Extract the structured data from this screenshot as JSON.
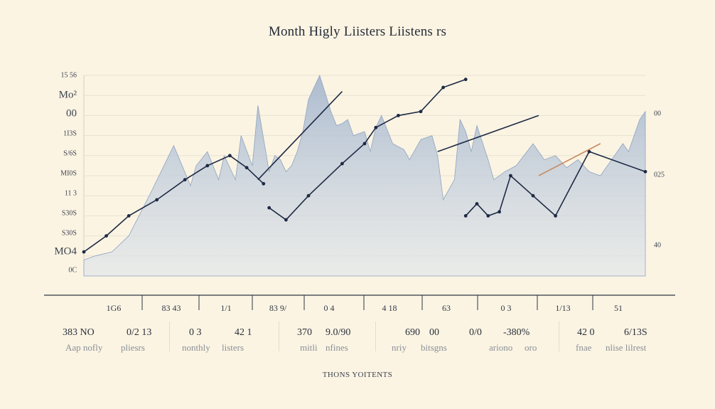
{
  "chart_data": {
    "type": "area",
    "title": "Month Higly Liisters Liistens rs",
    "y_ticks_left": [
      "15 56",
      "Mo²",
      "00",
      "1I3S",
      "S/6S",
      "MI0S",
      "11 3",
      "S30S",
      "S30S",
      "MO4",
      "0C"
    ],
    "y_ticks_right": [
      "00",
      "025",
      "40"
    ],
    "ylim": [
      0,
      100
    ],
    "grid": true,
    "categories": [
      "1G6",
      "83 43",
      "1/1",
      "83 9/",
      "0 4",
      "4 18",
      "63",
      "0 3",
      "1/13",
      "51"
    ],
    "area": {
      "x": [
        0,
        2,
        5,
        8,
        12,
        16,
        19,
        20,
        22,
        24,
        25,
        27,
        28,
        30,
        31,
        33,
        34,
        35,
        36,
        37,
        38,
        39,
        40,
        42,
        44,
        45,
        46,
        47,
        48,
        50,
        51,
        52,
        53,
        55,
        57,
        58,
        60,
        62,
        63,
        64,
        66,
        67,
        68,
        69,
        70,
        72,
        73,
        75,
        77,
        80,
        82,
        84,
        86,
        88,
        90,
        92,
        94,
        96,
        97,
        98,
        99,
        100
      ],
      "y": [
        8,
        10,
        12,
        20,
        42,
        65,
        45,
        55,
        62,
        48,
        60,
        48,
        70,
        55,
        85,
        52,
        60,
        58,
        52,
        55,
        62,
        72,
        88,
        100,
        82,
        75,
        76,
        78,
        70,
        72,
        62,
        74,
        80,
        66,
        63,
        58,
        68,
        70,
        60,
        38,
        48,
        78,
        72,
        62,
        75,
        58,
        48,
        52,
        55,
        66,
        58,
        60,
        54,
        58,
        52,
        50,
        58,
        66,
        62,
        70,
        78,
        82
      ]
    },
    "series": [
      {
        "x": [
          0,
          4,
          8,
          13,
          18,
          22,
          26,
          29,
          32
        ],
        "y": [
          12,
          20,
          30,
          38,
          48,
          55,
          60,
          54,
          46
        ]
      },
      {
        "x": [
          33,
          36,
          40,
          46,
          50,
          52,
          56,
          60,
          64,
          68
        ],
        "y": [
          34,
          28,
          40,
          56,
          66,
          74,
          80,
          82,
          94,
          98
        ]
      },
      {
        "x": [
          68,
          70,
          72,
          74,
          76,
          80,
          84,
          90,
          100
        ],
        "y": [
          30,
          36,
          30,
          32,
          50,
          40,
          30,
          62,
          52
        ]
      }
    ],
    "trend_lines": [
      {
        "x1": 31,
        "y1": 48,
        "x2": 46,
        "y2": 92
      },
      {
        "x1": 63,
        "y1": 62,
        "x2": 81,
        "y2": 80
      },
      {
        "x1": 81,
        "y1": 50,
        "x2": 92,
        "y2": 66
      }
    ],
    "legend": [
      {
        "value": "383 NO",
        "sub": "Aap nofly",
        "value2": "0/2 13",
        "sub2": "pliesrs"
      },
      {
        "value": "0 3",
        "sub": "nonthly",
        "value2": "42 1",
        "sub2": "listers"
      },
      {
        "value": "370",
        "sub": "mitli",
        "value2": "9.0/90",
        "sub2": "nfines"
      },
      {
        "value": "690",
        "sub": "nriy",
        "value2": "00",
        "sub2": "bitsgns"
      },
      {
        "value": "0/0",
        "sub": "ariono",
        "value2": "-380%",
        "sub2": "oro"
      },
      {
        "value": "42 0",
        "sub": "fnae",
        "value2": "6/13S",
        "sub2": "nlise lilrest"
      }
    ],
    "footer": "THONS YOITENTS",
    "colors": {
      "background": "#fbf4e3",
      "area_fill": "#a9b9d0",
      "line": "#1e2a44",
      "accent_line": "#c88a5e",
      "grid": "#e8e2d2"
    }
  }
}
